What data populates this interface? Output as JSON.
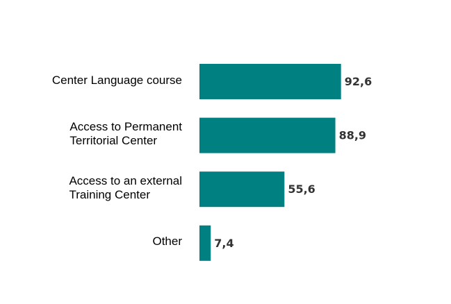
{
  "chart_data": {
    "type": "barh",
    "categories": [
      "Center Language course",
      "Access to Permanent\nTerritorial Center",
      "Access to an external\nTraining Center",
      "Other"
    ],
    "values": [
      92.6,
      88.9,
      55.6,
      7.4
    ],
    "value_labels": [
      "92,6",
      "88,9",
      "55,6",
      "7,4"
    ],
    "color": "#008080"
  }
}
